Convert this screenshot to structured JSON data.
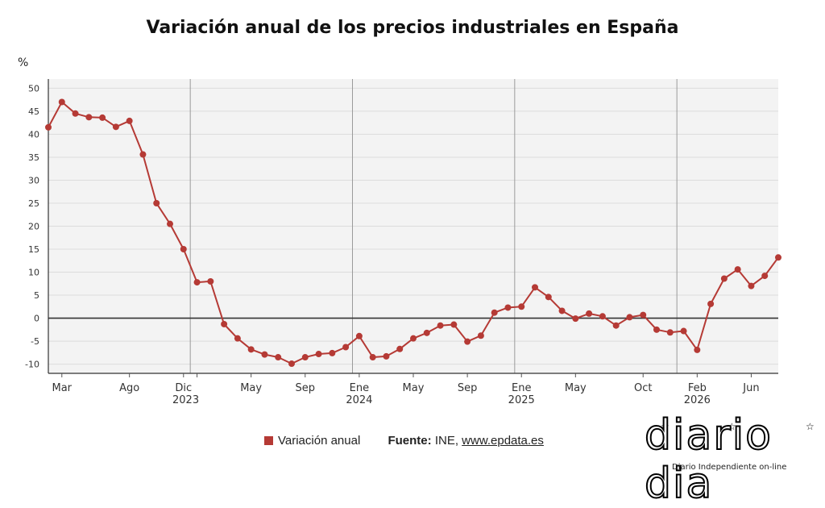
{
  "title": "Variación anual de los precios industriales en España",
  "unit_label": "%",
  "legend": {
    "series_label": "Variación anual",
    "source_label": "Fuente:",
    "source_text": "INE,",
    "source_link": "www.epdata.es"
  },
  "logo": {
    "text": "diario dia",
    "tagline": "Diario Independiente on-line"
  },
  "colors": {
    "series": "#b53a35",
    "plot_bg": "#f3f3f3",
    "grid": "#dcdcdc",
    "zero_line": "#333333",
    "year_line": "#9a9a9a"
  },
  "chart_data": {
    "type": "line",
    "title": "Variación anual de los precios industriales en España",
    "ylabel": "%",
    "ylim": [
      -12,
      52
    ],
    "yticks": [
      -10,
      -5,
      0,
      5,
      10,
      15,
      20,
      25,
      30,
      35,
      40,
      45,
      50
    ],
    "grid": true,
    "legend_position": "bottom",
    "x": [
      "2022-02",
      "2022-03",
      "2022-04",
      "2022-05",
      "2022-06",
      "2022-07",
      "2022-08",
      "2022-09",
      "2022-10",
      "2022-11",
      "2022-12",
      "2023-01",
      "2023-02",
      "2023-03",
      "2023-04",
      "2023-05",
      "2023-06",
      "2023-07",
      "2023-08",
      "2023-09",
      "2023-10",
      "2023-11",
      "2023-12",
      "2024-01",
      "2024-02",
      "2024-03",
      "2024-04",
      "2024-05",
      "2024-06",
      "2024-07",
      "2024-08",
      "2024-09",
      "2024-10",
      "2024-11",
      "2024-12",
      "2025-01",
      "2025-02",
      "2025-03",
      "2025-04",
      "2025-05",
      "2025-06",
      "2025-07",
      "2025-08",
      "2025-09",
      "2025-10",
      "2025-11",
      "2025-12",
      "2026-01",
      "2026-02",
      "2026-03",
      "2026-04",
      "2026-05",
      "2026-06",
      "2026-07",
      "2026-08"
    ],
    "series": [
      {
        "name": "Variación anual",
        "values": [
          41.5,
          47.0,
          44.5,
          43.7,
          43.6,
          41.6,
          42.9,
          35.6,
          25.0,
          20.5,
          15.0,
          7.8,
          8.0,
          -1.3,
          -4.4,
          -6.8,
          -7.9,
          -8.5,
          -9.9,
          -8.5,
          -7.8,
          -7.6,
          -6.3,
          -3.9,
          -8.5,
          -8.3,
          -6.7,
          -4.4,
          -3.2,
          -1.6,
          -1.4,
          -5.1,
          -3.8,
          1.2,
          2.3,
          2.5,
          6.7,
          4.6,
          1.6,
          -0.1,
          1.0,
          0.4,
          -1.6,
          0.2,
          0.7,
          -2.5,
          -3.1,
          -2.8,
          -6.9,
          3.1,
          8.6,
          10.6,
          7.0,
          9.2,
          13.2
        ]
      }
    ],
    "x_tick_labels": [
      {
        "x": "2022-03",
        "label": "Mar",
        "year": ""
      },
      {
        "x": "2022-08",
        "label": "Ago",
        "year": ""
      },
      {
        "x": "2022-12",
        "label": "Dic",
        "year": ""
      },
      {
        "x": "2023-01",
        "label": "",
        "year": "2023"
      },
      {
        "x": "2023-05",
        "label": "May",
        "year": ""
      },
      {
        "x": "2023-09",
        "label": "Sep",
        "year": ""
      },
      {
        "x": "2024-01",
        "label": "Ene",
        "year": "2024"
      },
      {
        "x": "2024-05",
        "label": "May",
        "year": ""
      },
      {
        "x": "2024-09",
        "label": "Sep",
        "year": ""
      },
      {
        "x": "2025-01",
        "label": "Ene",
        "year": "2025"
      },
      {
        "x": "2025-05",
        "label": "May",
        "year": ""
      },
      {
        "x": "2025-10",
        "label": "Oct",
        "year": ""
      },
      {
        "x": "2026-02",
        "label": "Feb",
        "year": "2026"
      },
      {
        "x": "2026-06",
        "label": "Jun",
        "year": ""
      }
    ],
    "year_boundaries": [
      "2023-01",
      "2024-01",
      "2025-01",
      "2026-01"
    ]
  }
}
